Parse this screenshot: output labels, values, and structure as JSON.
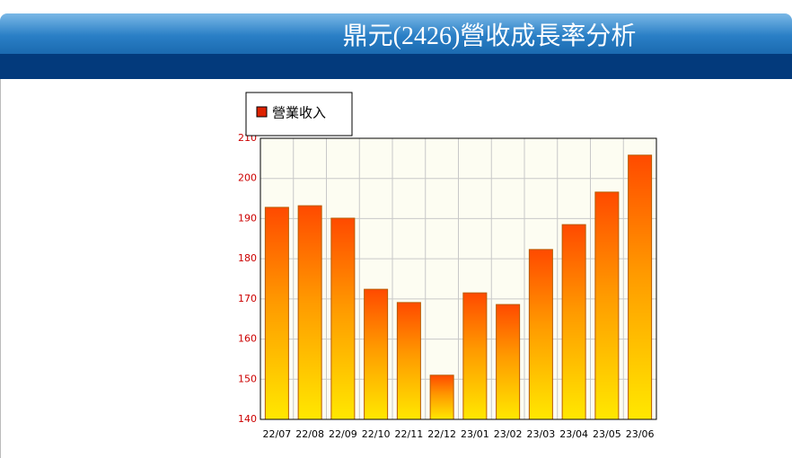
{
  "page_title": "鼎元(2426)營收成長率分析",
  "chart_data": {
    "type": "bar",
    "categories": [
      "22/07",
      "22/08",
      "22/09",
      "22/10",
      "22/11",
      "22/12",
      "23/01",
      "23/02",
      "23/03",
      "23/04",
      "23/05",
      "23/06"
    ],
    "series": [
      {
        "name": "營業收入",
        "color": "#dd2200",
        "values": [
          192.8,
          193.2,
          190.1,
          172.4,
          169.1,
          151,
          171.5,
          168.6,
          182.3,
          188.5,
          196.6,
          205.8
        ]
      }
    ],
    "ylim": [
      140,
      210
    ],
    "yticks": [
      140,
      150,
      160,
      170,
      180,
      190,
      200,
      210
    ],
    "grid": true,
    "legend": "top-left"
  }
}
